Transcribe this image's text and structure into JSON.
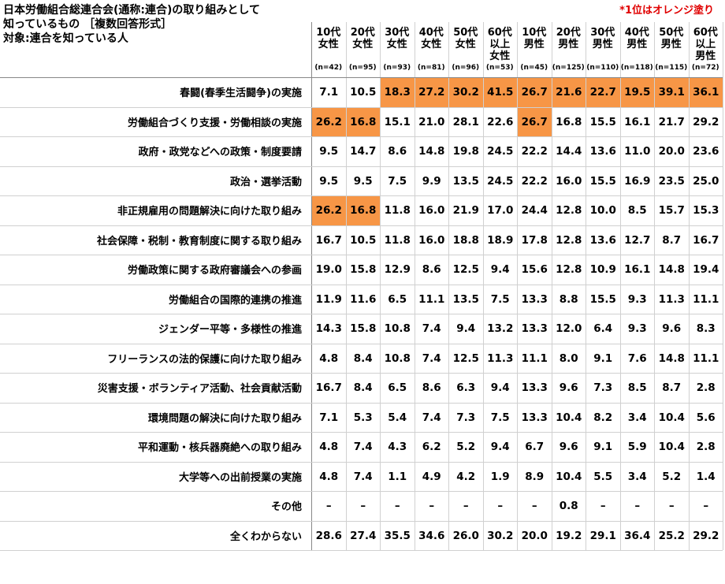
{
  "title": [
    "日本労働組合総連合会(通称:連合)の取り組みとして",
    "知っているもの ［複数回答形式］",
    "対象:連合を知っている人"
  ],
  "note": "*1位はオレンジ塗り",
  "highlight_color": "#f79646",
  "columns": [
    {
      "label": [
        "10代",
        "女性"
      ],
      "n": "(n=42)"
    },
    {
      "label": [
        "20代",
        "女性"
      ],
      "n": "(n=95)"
    },
    {
      "label": [
        "30代",
        "女性"
      ],
      "n": "(n=93)"
    },
    {
      "label": [
        "40代",
        "女性"
      ],
      "n": "(n=81)"
    },
    {
      "label": [
        "50代",
        "女性"
      ],
      "n": "(n=96)"
    },
    {
      "label": [
        "60代",
        "以上",
        "女性"
      ],
      "n": "(n=53)"
    },
    {
      "label": [
        "10代",
        "男性"
      ],
      "n": "(n=45)"
    },
    {
      "label": [
        "20代",
        "男性"
      ],
      "n": "(n=125)"
    },
    {
      "label": [
        "30代",
        "男性"
      ],
      "n": "(n=110)"
    },
    {
      "label": [
        "40代",
        "男性"
      ],
      "n": "(n=118)"
    },
    {
      "label": [
        "50代",
        "男性"
      ],
      "n": "(n=115)"
    },
    {
      "label": [
        "60代",
        "以上",
        "男性"
      ],
      "n": "(n=72)"
    }
  ],
  "rows": [
    {
      "label": "春闘(春季生活闘争)の実施",
      "values": [
        "7.1",
        "10.5",
        "18.3",
        "27.2",
        "30.2",
        "41.5",
        "26.7",
        "21.6",
        "22.7",
        "19.5",
        "39.1",
        "36.1"
      ],
      "highlighted": [
        2,
        3,
        4,
        5,
        6,
        7,
        8,
        9,
        10,
        11
      ]
    },
    {
      "label": "労働組合づくり支援・労働相談の実施",
      "values": [
        "26.2",
        "16.8",
        "15.1",
        "21.0",
        "28.1",
        "22.6",
        "26.7",
        "16.8",
        "15.5",
        "16.1",
        "21.7",
        "29.2"
      ],
      "highlighted": [
        0,
        1,
        6
      ]
    },
    {
      "label": "政府・政党などへの政策・制度要請",
      "values": [
        "9.5",
        "14.7",
        "8.6",
        "14.8",
        "19.8",
        "24.5",
        "22.2",
        "14.4",
        "13.6",
        "11.0",
        "20.0",
        "23.6"
      ]
    },
    {
      "label": "政治・選挙活動",
      "values": [
        "9.5",
        "9.5",
        "7.5",
        "9.9",
        "13.5",
        "24.5",
        "22.2",
        "16.0",
        "15.5",
        "16.9",
        "23.5",
        "25.0"
      ]
    },
    {
      "label": "非正規雇用の問題解決に向けた取り組み",
      "values": [
        "26.2",
        "16.8",
        "11.8",
        "16.0",
        "21.9",
        "17.0",
        "24.4",
        "12.8",
        "10.0",
        "8.5",
        "15.7",
        "15.3"
      ],
      "highlighted": [
        0,
        1
      ]
    },
    {
      "label": "社会保障・税制・教育制度に関する取り組み",
      "values": [
        "16.7",
        "10.5",
        "11.8",
        "16.0",
        "18.8",
        "18.9",
        "17.8",
        "12.8",
        "13.6",
        "12.7",
        "8.7",
        "16.7"
      ]
    },
    {
      "label": "労働政策に関する政府審議会への参画",
      "values": [
        "19.0",
        "15.8",
        "12.9",
        "8.6",
        "12.5",
        "9.4",
        "15.6",
        "12.8",
        "10.9",
        "16.1",
        "14.8",
        "19.4"
      ]
    },
    {
      "label": "労働組合の国際的連携の推進",
      "values": [
        "11.9",
        "11.6",
        "6.5",
        "11.1",
        "13.5",
        "7.5",
        "13.3",
        "8.8",
        "15.5",
        "9.3",
        "11.3",
        "11.1"
      ]
    },
    {
      "label": "ジェンダー平等・多様性の推進",
      "values": [
        "14.3",
        "15.8",
        "10.8",
        "7.4",
        "9.4",
        "13.2",
        "13.3",
        "12.0",
        "6.4",
        "9.3",
        "9.6",
        "8.3"
      ]
    },
    {
      "label": "フリーランスの法的保護に向けた取り組み",
      "values": [
        "4.8",
        "8.4",
        "10.8",
        "7.4",
        "12.5",
        "11.3",
        "11.1",
        "8.0",
        "9.1",
        "7.6",
        "14.8",
        "11.1"
      ]
    },
    {
      "label": "災害支援・ボランティア活動、社会貢献活動",
      "values": [
        "16.7",
        "8.4",
        "6.5",
        "8.6",
        "6.3",
        "9.4",
        "13.3",
        "9.6",
        "7.3",
        "8.5",
        "8.7",
        "2.8"
      ]
    },
    {
      "label": "環境問題の解決に向けた取り組み",
      "values": [
        "7.1",
        "5.3",
        "5.4",
        "7.4",
        "7.3",
        "7.5",
        "13.3",
        "10.4",
        "8.2",
        "3.4",
        "10.4",
        "5.6"
      ]
    },
    {
      "label": "平和運動・核兵器廃絶への取り組み",
      "values": [
        "4.8",
        "7.4",
        "4.3",
        "6.2",
        "5.2",
        "9.4",
        "6.7",
        "9.6",
        "9.1",
        "5.9",
        "10.4",
        "2.8"
      ]
    },
    {
      "label": "大学等への出前授業の実施",
      "values": [
        "4.8",
        "7.4",
        "1.1",
        "4.9",
        "4.2",
        "1.9",
        "8.9",
        "10.4",
        "5.5",
        "3.4",
        "5.2",
        "1.4"
      ]
    },
    {
      "label": "その他",
      "values": [
        "–",
        "–",
        "–",
        "–",
        "–",
        "–",
        "–",
        "0.8",
        "–",
        "–",
        "–",
        "–"
      ]
    },
    {
      "label": "全くわからない",
      "values": [
        "28.6",
        "27.4",
        "35.5",
        "34.6",
        "26.0",
        "30.2",
        "20.0",
        "19.2",
        "29.1",
        "36.4",
        "25.2",
        "29.2"
      ]
    }
  ]
}
